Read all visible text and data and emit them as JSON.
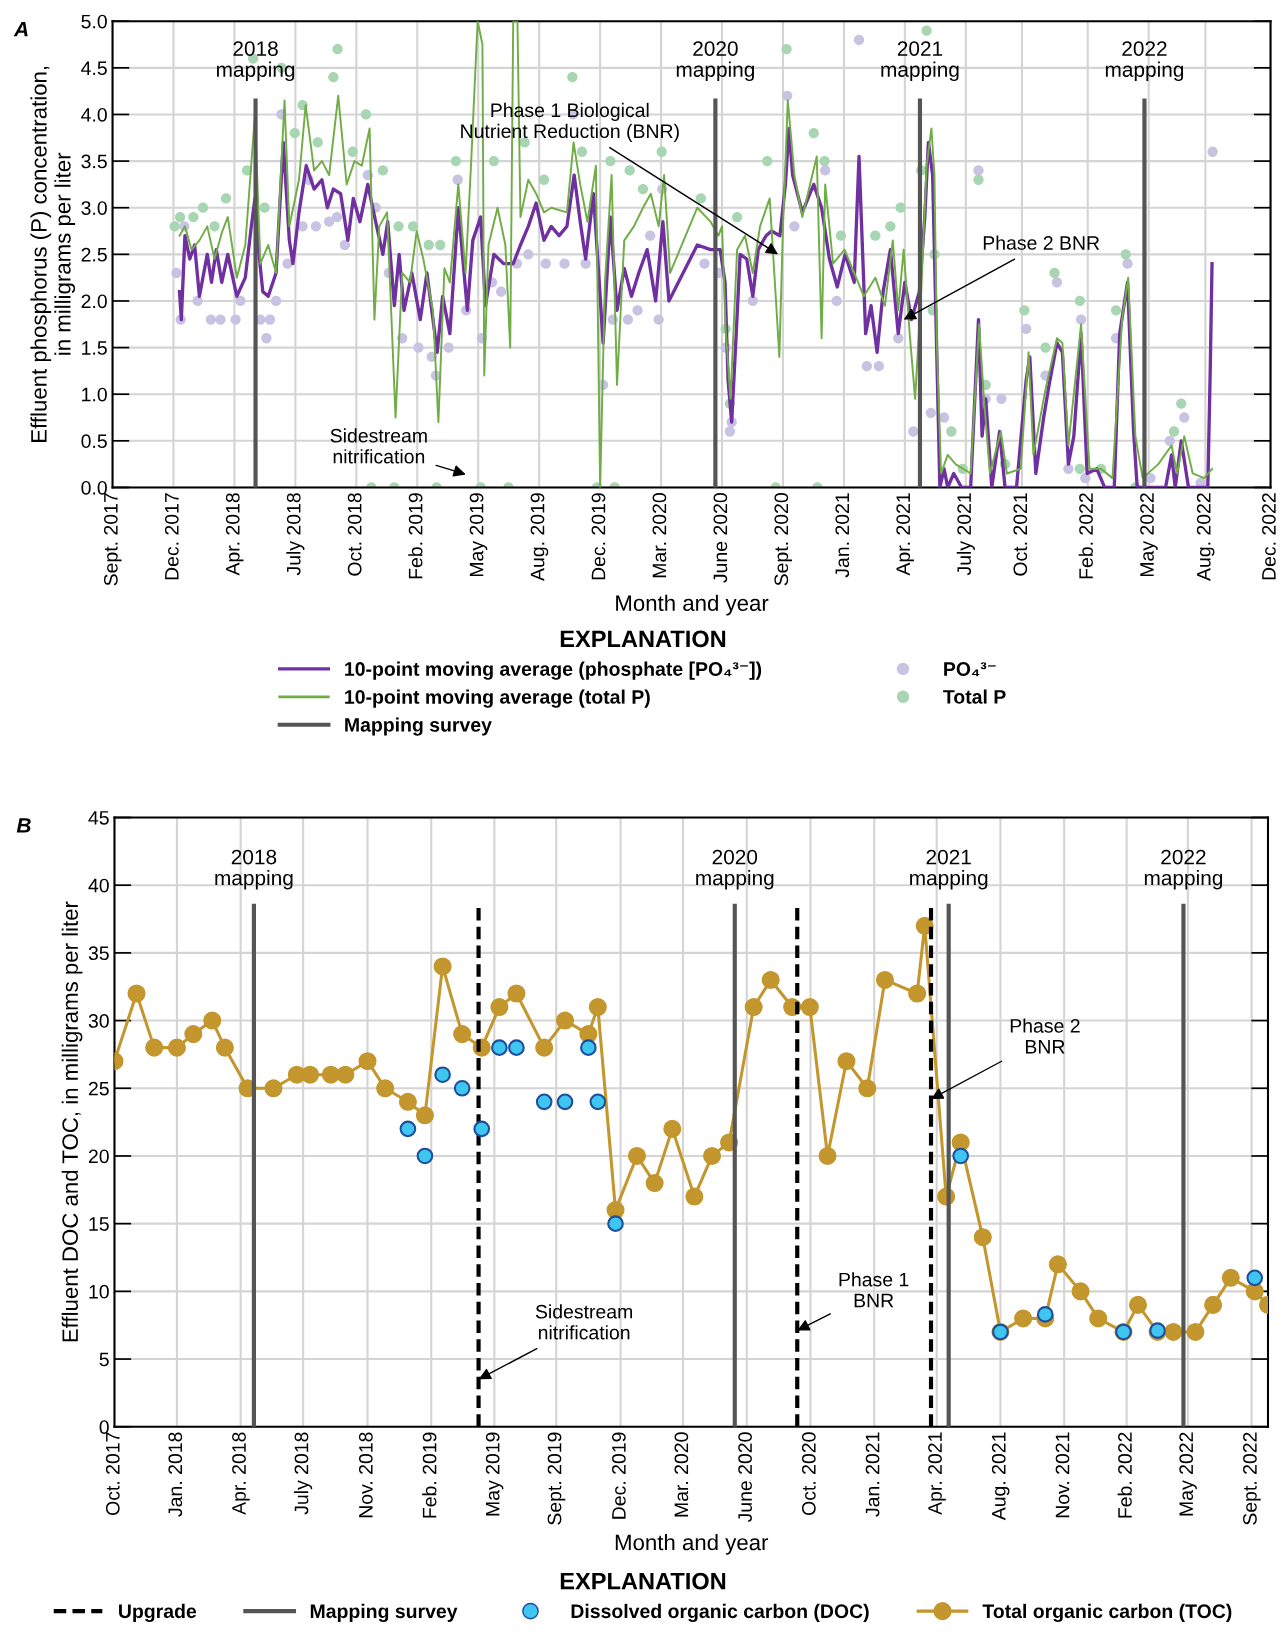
{
  "chart_data": [
    {
      "type": "line",
      "title": "A",
      "xlabel": "Month and year",
      "ylabel": "Effluent phosphorus (P) concentration,\nin milligrams per liter",
      "legend_title": "EXPLANATION",
      "xlim": [
        "2017-09-15",
        "2022-12-17"
      ],
      "xticks": [
        {
          "value": "2017-09-15",
          "label": "Sept. 2017"
        },
        {
          "value": "2017-12-25",
          "label": "Dec. 2017"
        },
        {
          "value": "2018-04-05",
          "label": "Apr. 2018"
        },
        {
          "value": "2018-07-15",
          "label": "July 2018"
        },
        {
          "value": "2018-10-24",
          "label": "Oct. 2018"
        },
        {
          "value": "2019-02-02",
          "label": "Feb. 2019"
        },
        {
          "value": "2019-05-14",
          "label": "May 2019"
        },
        {
          "value": "2019-08-23",
          "label": "Aug. 2019"
        },
        {
          "value": "2019-12-02",
          "label": "Dec. 2019"
        },
        {
          "value": "2020-03-12",
          "label": "Mar. 2020"
        },
        {
          "value": "2020-06-21",
          "label": "June 2020"
        },
        {
          "value": "2020-09-30",
          "label": "Sept. 2020"
        },
        {
          "value": "2021-01-09",
          "label": "Jan. 2021"
        },
        {
          "value": "2021-04-20",
          "label": "Apr. 2021"
        },
        {
          "value": "2021-07-30",
          "label": "July 2021"
        },
        {
          "value": "2021-10-31",
          "label": "Oct. 2021"
        },
        {
          "value": "2022-02-17",
          "label": "Feb. 2022"
        },
        {
          "value": "2022-05-29",
          "label": "May 2022"
        },
        {
          "value": "2022-08-31",
          "label": "Aug. 2022"
        },
        {
          "value": "2022-12-17",
          "label": "Dec. 2022"
        }
      ],
      "ylim": [
        0,
        5
      ],
      "yticks": [
        {
          "value": 0,
          "label": "0.0"
        },
        0.5,
        {
          "value": 1,
          "label": "1.0"
        },
        1.5,
        {
          "value": 2,
          "label": "2.0"
        },
        2.5,
        {
          "value": 3,
          "label": "3.0"
        },
        3.5,
        {
          "value": 4,
          "label": "4.0"
        },
        4.5,
        {
          "value": 5,
          "label": "5.0"
        }
      ],
      "grid": true,
      "legend": "bottom",
      "series": [
        {
          "name": "PO₄³⁻",
          "type": "scatter",
          "marker": "circle",
          "color": "#c9c3e3",
          "x": [
            "2017-12-30",
            "2018-01-06",
            "2018-01-12",
            "2018-02-03",
            "2018-02-25",
            "2018-03-13",
            "2018-04-07",
            "2018-04-15",
            "2018-05-18",
            "2018-05-28",
            "2018-06-03",
            "2018-06-13",
            "2018-06-22",
            "2018-07-02",
            "2018-07-27",
            "2018-08-06",
            "2018-08-18",
            "2018-09-09",
            "2018-09-22",
            "2018-10-05",
            "2018-11-12",
            "2018-11-25",
            "2018-12-17",
            "2019-01-08",
            "2019-02-04",
            "2019-02-26",
            "2019-03-05",
            "2019-03-26",
            "2019-04-10",
            "2019-04-24",
            "2019-05-20",
            "2019-06-06",
            "2019-06-21",
            "2019-07-17",
            "2019-08-05",
            "2019-09-03",
            "2019-10-04",
            "2019-10-18",
            "2019-11-08",
            "2019-12-07",
            "2019-12-23",
            "2020-01-17",
            "2020-02-02",
            "2020-02-23",
            "2020-03-08",
            "2020-03-14",
            "2020-05-23",
            "2020-06-15",
            "2020-06-27",
            "2020-07-04",
            "2020-07-07",
            "2020-08-11",
            "2020-10-07",
            "2020-10-19",
            "2020-12-09",
            "2020-12-28",
            "2021-02-03",
            "2021-02-16",
            "2021-03-08",
            "2021-04-09",
            "2021-05-04",
            "2021-06-02",
            "2021-06-24",
            "2021-08-20",
            "2021-09-01",
            "2021-09-27",
            "2021-11-07",
            "2021-12-09",
            "2021-12-28",
            "2022-01-16",
            "2022-02-06",
            "2022-02-13",
            "2022-04-05",
            "2022-04-24",
            "2022-06-01",
            "2022-07-03",
            "2022-07-27",
            "2022-08-23",
            "2022-09-12"
          ],
          "values": [
            2.3,
            1.8,
            2.8,
            2.0,
            1.8,
            1.8,
            1.8,
            2.0,
            1.8,
            1.6,
            1.8,
            2.0,
            4.0,
            2.4,
            2.8,
            3.3,
            2.8,
            2.85,
            2.9,
            2.6,
            3.35,
            3.0,
            2.3,
            1.6,
            1.5,
            1.4,
            1.2,
            1.5,
            3.3,
            1.9,
            1.6,
            2.2,
            2.1,
            2.4,
            2.5,
            2.4,
            2.4,
            4.0,
            2.4,
            1.1,
            1.8,
            1.8,
            1.9,
            2.7,
            1.8,
            3.2,
            2.4,
            2.3,
            1.5,
            0.6,
            0.7,
            2.0,
            4.2,
            2.8,
            3.4,
            2.0,
            4.8,
            1.3,
            1.3,
            1.6,
            0.6,
            0.8,
            0.75,
            3.4,
            0.95,
            0.95,
            1.7,
            1.2,
            2.2,
            0.2,
            1.8,
            0.1,
            1.6,
            2.4,
            0.1,
            0.5,
            0.75,
            0.05,
            3.6
          ]
        },
        {
          "name": "Total P",
          "type": "scatter",
          "marker": "circle",
          "color": "#a9d6b2",
          "x": [
            "2017-12-27",
            "2018-01-05",
            "2018-01-27",
            "2018-02-12",
            "2018-03-03",
            "2018-03-22",
            "2018-04-26",
            "2018-05-06",
            "2018-05-25",
            "2018-06-22",
            "2018-07-14",
            "2018-07-27",
            "2018-08-21",
            "2018-09-16",
            "2018-09-23",
            "2018-10-18",
            "2018-11-09",
            "2018-11-18",
            "2018-12-07",
            "2018-12-26",
            "2019-01-02",
            "2019-01-26",
            "2019-02-21",
            "2019-03-06",
            "2019-03-12",
            "2019-04-07",
            "2019-05-18",
            "2019-06-09",
            "2019-07-03",
            "2019-07-30",
            "2019-08-31",
            "2019-10-17",
            "2019-11-02",
            "2019-11-27",
            "2019-12-19",
            "2019-12-26",
            "2020-01-20",
            "2020-02-11",
            "2020-03-13",
            "2020-05-17",
            "2020-06-27",
            "2020-07-04",
            "2020-07-16",
            "2020-09-04",
            "2020-09-18",
            "2020-10-06",
            "2020-11-20",
            "2020-11-26",
            "2020-12-08",
            "2021-01-04",
            "2021-03-02",
            "2021-03-27",
            "2021-04-13",
            "2021-05-17",
            "2021-05-26",
            "2021-06-05",
            "2021-06-08",
            "2021-07-06",
            "2021-07-25",
            "2021-08-20",
            "2021-09-01",
            "2021-10-03",
            "2021-11-04",
            "2021-12-09",
            "2021-12-24",
            "2022-02-04",
            "2022-02-04",
            "2022-03-11",
            "2022-04-05",
            "2022-04-21",
            "2022-05-07",
            "2022-07-10",
            "2022-07-22"
          ],
          "values": [
            2.8,
            2.9,
            2.9,
            3.0,
            2.8,
            3.1,
            3.4,
            4.6,
            3.0,
            4.5,
            3.8,
            4.1,
            3.7,
            4.4,
            4.7,
            3.6,
            4.0,
            0.0,
            3.4,
            0.0,
            2.8,
            2.8,
            2.6,
            0.0,
            2.6,
            3.5,
            0.0,
            3.5,
            0.0,
            3.7,
            3.3,
            4.4,
            3.6,
            0.0,
            3.5,
            0.0,
            3.4,
            3.2,
            3.6,
            3.1,
            1.7,
            0.9,
            2.9,
            3.5,
            0.0,
            4.7,
            3.8,
            0.0,
            3.5,
            2.7,
            2.7,
            2.8,
            3.0,
            3.4,
            4.9,
            1.9,
            2.5,
            0.6,
            0.2,
            3.3,
            1.1,
            0.25,
            1.9,
            1.5,
            2.3,
            2.0,
            0.2,
            0.2,
            1.9,
            2.5,
            0.0,
            0.6,
            0.9
          ]
        },
        {
          "name": "10-point moving average (phosphate [PO₄³⁻])",
          "color": "#7030a0",
          "x": [
            "2018-01-04",
            "2018-01-07",
            "2018-01-13",
            "2018-01-21",
            "2018-01-29",
            "2018-02-06",
            "2018-02-19",
            "2018-02-26",
            "2018-03-06",
            "2018-03-15",
            "2018-03-25",
            "2018-04-09",
            "2018-04-23",
            "2018-05-03",
            "2018-05-09",
            "2018-05-15",
            "2018-05-22",
            "2018-05-31",
            "2018-06-13",
            "2018-06-25",
            "2018-07-05",
            "2018-07-11",
            "2018-07-21",
            "2018-08-02",
            "2018-08-15",
            "2018-08-28",
            "2018-09-06",
            "2018-09-16",
            "2018-09-28",
            "2018-10-10",
            "2018-10-19",
            "2018-10-30",
            "2018-11-12",
            "2018-11-25",
            "2018-12-07",
            "2018-12-15",
            "2018-12-26",
            "2019-01-03",
            "2019-01-11",
            "2019-01-24",
            "2019-02-07",
            "2019-02-18",
            "2019-02-28",
            "2019-03-07",
            "2019-03-16",
            "2019-03-28",
            "2019-04-11",
            "2019-04-26",
            "2019-05-05",
            "2019-05-18",
            "2019-05-26",
            "2019-06-09",
            "2019-06-25",
            "2019-07-11",
            "2019-07-23",
            "2019-08-05",
            "2019-08-18",
            "2019-08-31",
            "2019-09-12",
            "2019-09-25",
            "2019-10-08",
            "2019-10-20",
            "2019-10-30",
            "2019-11-08",
            "2019-11-21",
            "2019-12-07",
            "2019-12-19",
            "2019-12-30",
            "2020-01-11",
            "2020-01-23",
            "2020-02-04",
            "2020-02-18",
            "2020-03-03",
            "2020-03-15",
            "2020-03-25",
            "2020-05-11",
            "2020-06-02",
            "2020-06-18",
            "2020-06-26",
            "2020-07-01",
            "2020-07-07",
            "2020-07-13",
            "2020-07-21",
            "2020-08-01",
            "2020-08-11",
            "2020-08-20",
            "2020-09-02",
            "2020-09-11",
            "2020-09-25",
            "2020-10-04",
            "2020-10-10",
            "2020-10-16",
            "2020-11-01",
            "2020-11-20",
            "2020-12-03",
            "2020-12-16",
            "2020-12-29",
            "2021-01-11",
            "2021-01-26",
            "2021-02-03",
            "2021-02-14",
            "2021-02-23",
            "2021-03-05",
            "2021-03-15",
            "2021-03-27",
            "2021-04-09",
            "2021-04-20",
            "2021-05-01",
            "2021-05-14",
            "2021-05-23",
            "2021-05-29",
            "2021-06-05",
            "2021-06-12",
            "2021-06-17",
            "2021-06-24",
            "2021-06-30",
            "2021-07-10",
            "2021-07-23",
            "2021-08-07",
            "2021-08-20",
            "2021-08-26",
            "2021-09-01",
            "2021-09-11",
            "2021-09-24",
            "2021-10-03",
            "2021-10-22",
            "2021-11-07",
            "2021-11-13",
            "2021-11-23",
            "2021-12-06",
            "2021-12-15",
            "2021-12-28",
            "2022-01-06",
            "2022-01-16",
            "2022-01-25",
            "2022-02-06",
            "2022-02-16",
            "2022-03-04",
            "2022-03-17",
            "2022-04-02",
            "2022-04-11",
            "2022-04-24",
            "2022-05-04",
            "2022-05-10",
            "2022-06-01",
            "2022-06-26",
            "2022-07-06",
            "2022-07-12",
            "2022-07-22",
            "2022-08-03",
            "2022-08-23",
            "2022-09-04",
            "2022-09-08",
            "2022-09-11"
          ],
          "values": [
            2.1,
            1.8,
            2.7,
            2.45,
            2.6,
            2.05,
            2.5,
            2.2,
            2.55,
            2.2,
            2.5,
            2.05,
            2.25,
            2.8,
            3.1,
            2.55,
            2.1,
            2.05,
            2.3,
            3.7,
            2.65,
            2.4,
            2.95,
            3.45,
            3.2,
            3.3,
            3.0,
            3.2,
            3.15,
            2.65,
            3.1,
            2.85,
            3.25,
            2.85,
            2.5,
            2.85,
            1.95,
            2.5,
            1.9,
            2.3,
            1.8,
            2.3,
            1.8,
            1.45,
            2.05,
            1.65,
            3.0,
            1.9,
            2.65,
            2.9,
            1.95,
            2.5,
            2.4,
            2.4,
            2.6,
            2.8,
            3.05,
            2.65,
            2.8,
            2.7,
            2.8,
            3.35,
            2.85,
            2.45,
            3.15,
            1.55,
            2.9,
            1.9,
            2.35,
            2.05,
            2.3,
            2.55,
            2.0,
            2.85,
            2.0,
            2.6,
            2.55,
            2.55,
            2.2,
            1.15,
            0.7,
            1.45,
            2.5,
            2.45,
            2.05,
            2.55,
            2.7,
            2.75,
            2.7,
            3.25,
            3.85,
            3.35,
            2.95,
            3.25,
            3.0,
            2.45,
            2.15,
            2.5,
            2.2,
            3.55,
            1.65,
            1.95,
            1.45,
            2.1,
            2.55,
            1.65,
            2.2,
            1.8,
            2.1,
            2.9,
            3.7,
            3.35,
            1.4,
            0.0,
            0.2,
            0.0,
            0.15,
            0.0,
            0.0,
            1.8,
            0.55,
            0.95,
            0.0,
            0.6,
            0.0,
            0.0,
            1.15,
            1.4,
            0.15,
            0.75,
            1.1,
            1.55,
            1.45,
            0.25,
            0.55,
            1.65,
            0.15,
            0.2,
            0.0,
            0.0,
            1.65,
            2.2,
            0.6,
            0.0,
            0.0,
            0.0,
            0.35,
            0.0,
            0.5,
            0.0,
            0.0,
            0.0,
            1.25,
            2.4
          ]
        },
        {
          "name": "10-point moving average (total P)",
          "color": "#70ad47",
          "x": [
            "2018-01-04",
            "2018-01-13",
            "2018-01-24",
            "2018-02-06",
            "2018-02-19",
            "2018-03-03",
            "2018-03-16",
            "2018-03-25",
            "2018-04-09",
            "2018-04-23",
            "2018-05-09",
            "2018-05-18",
            "2018-05-31",
            "2018-06-13",
            "2018-06-27",
            "2018-07-05",
            "2018-07-21",
            "2018-08-01",
            "2018-08-15",
            "2018-08-28",
            "2018-09-09",
            "2018-09-24",
            "2018-10-08",
            "2018-10-21",
            "2018-11-02",
            "2018-11-15",
            "2018-11-23",
            "2018-12-01",
            "2018-12-14",
            "2018-12-28",
            "2019-01-08",
            "2019-01-21",
            "2019-02-01",
            "2019-02-12",
            "2019-02-28",
            "2019-03-09",
            "2019-03-19",
            "2019-03-28",
            "2019-04-11",
            "2019-04-23",
            "2019-05-02",
            "2019-05-13",
            "2019-05-21",
            "2019-05-24",
            "2019-05-31",
            "2019-06-15",
            "2019-06-28",
            "2019-07-06",
            "2019-07-11",
            "2019-07-18",
            "2019-07-23",
            "2019-08-05",
            "2019-08-18",
            "2019-08-31",
            "2019-09-12",
            "2019-10-08",
            "2019-10-19",
            "2019-10-30",
            "2019-11-11",
            "2019-11-25",
            "2019-12-02",
            "2019-12-10",
            "2019-12-21",
            "2019-12-30",
            "2020-01-11",
            "2020-01-27",
            "2020-02-11",
            "2020-02-24",
            "2020-03-08",
            "2020-03-17",
            "2020-03-27",
            "2020-05-11",
            "2020-06-02",
            "2020-06-15",
            "2020-06-21",
            "2020-06-27",
            "2020-07-05",
            "2020-07-16",
            "2020-07-29",
            "2020-08-11",
            "2020-08-23",
            "2020-09-08",
            "2020-09-18",
            "2020-09-24",
            "2020-09-30",
            "2020-10-08",
            "2020-10-19",
            "2020-11-01",
            "2020-11-25",
            "2020-12-03",
            "2020-12-09",
            "2020-12-22",
            "2021-01-10",
            "2021-01-26",
            "2021-02-11",
            "2021-03-02",
            "2021-03-18",
            "2021-03-31",
            "2021-04-09",
            "2021-04-18",
            "2021-04-28",
            "2021-05-07",
            "2021-05-17",
            "2021-05-26",
            "2021-06-03",
            "2021-06-08",
            "2021-06-12",
            "2021-06-19",
            "2021-06-30",
            "2021-07-13",
            "2021-08-07",
            "2021-08-21",
            "2021-08-29",
            "2021-09-08",
            "2021-09-26",
            "2021-10-06",
            "2021-10-29",
            "2021-11-11",
            "2021-11-19",
            "2021-12-09",
            "2021-12-28",
            "2022-01-06",
            "2022-01-16",
            "2022-02-06",
            "2022-02-20",
            "2022-03-11",
            "2022-03-30",
            "2022-04-15",
            "2022-04-25",
            "2022-05-07",
            "2022-05-19",
            "2022-06-14",
            "2022-07-06",
            "2022-07-15",
            "2022-07-27",
            "2022-08-10",
            "2022-08-29",
            "2022-09-11"
          ],
          "values": [
            2.7,
            2.8,
            2.55,
            2.65,
            2.8,
            2.45,
            2.75,
            2.9,
            2.25,
            2.6,
            4.0,
            2.4,
            2.6,
            2.3,
            4.15,
            2.8,
            3.3,
            4.1,
            3.4,
            3.5,
            3.35,
            4.2,
            3.25,
            3.5,
            3.45,
            3.85,
            1.8,
            2.8,
            2.95,
            0.75,
            2.3,
            2.2,
            2.75,
            2.45,
            1.9,
            0.7,
            2.35,
            2.2,
            3.25,
            2.3,
            3.45,
            5.0,
            4.75,
            1.2,
            2.6,
            3.0,
            2.6,
            1.5,
            5.0,
            5.0,
            2.9,
            3.3,
            3.15,
            2.95,
            3.0,
            2.95,
            3.7,
            3.25,
            2.85,
            3.45,
            0.0,
            2.2,
            3.35,
            1.1,
            2.65,
            2.8,
            3.0,
            3.15,
            2.8,
            3.35,
            2.3,
            3.0,
            2.85,
            2.7,
            2.8,
            1.7,
            0.95,
            2.55,
            2.7,
            2.3,
            2.8,
            3.1,
            2.05,
            1.4,
            2.8,
            4.15,
            3.35,
            2.9,
            3.55,
            1.6,
            3.25,
            2.4,
            2.55,
            2.3,
            2.05,
            2.25,
            1.95,
            2.65,
            1.9,
            2.55,
            1.65,
            0.95,
            2.1,
            3.45,
            3.85,
            3.35,
            1.55,
            0.15,
            0.35,
            0.25,
            0.15,
            1.75,
            0.95,
            0.15,
            0.6,
            0.15,
            0.2,
            1.45,
            0.35,
            1.05,
            1.6,
            1.55,
            0.45,
            1.75,
            0.2,
            0.2,
            0.1,
            1.8,
            2.25,
            0.55,
            0.1,
            0.25,
            0.45,
            0.15,
            0.55,
            0.15,
            0.1,
            0.2
          ]
        }
      ],
      "ref_lines": [
        {
          "axis": "x",
          "value": "2018-05-10",
          "label": "2018\nmapping",
          "color": "#555555"
        },
        {
          "axis": "x",
          "value": "2020-06-10",
          "label": "2020\nmapping",
          "color": "#555555"
        },
        {
          "axis": "x",
          "value": "2021-05-15",
          "label": "2021\nmapping",
          "color": "#555555"
        },
        {
          "axis": "x",
          "value": "2022-05-22",
          "label": "2022\nmapping",
          "color": "#555555"
        }
      ],
      "annotations": [
        {
          "text": "Phase 1 Biological\nNutrient Reduction (BNR)",
          "x": "2020-09-22",
          "y": 2.5
        },
        {
          "text": "Phase 2 BNR",
          "x": "2021-04-18",
          "y": 1.8
        },
        "Sidestream\nnitrification",
        "Mapping survey"
      ]
    },
    {
      "type": "line",
      "title": "B",
      "xlabel": "Month and year",
      "ylabel": "Effluent DOC and TOC, in milligrams per liter",
      "legend_title": "EXPLANATION",
      "xlim": [
        "2017-10-01",
        "2022-10-03"
      ],
      "xticks": [
        {
          "value": "2017-10-01",
          "label": "Oct. 2017"
        },
        {
          "value": "2018-01-08",
          "label": "Jan. 2018"
        },
        {
          "value": "2018-04-19",
          "label": "Apr. 2018"
        },
        {
          "value": "2018-07-27",
          "label": "July 2018"
        },
        {
          "value": "2018-11-06",
          "label": "Nov. 2018"
        },
        {
          "value": "2019-02-15",
          "label": "Feb. 2019"
        },
        {
          "value": "2019-05-26",
          "label": "May 2019"
        },
        {
          "value": "2019-09-01",
          "label": "Sept. 2019"
        },
        {
          "value": "2019-12-12",
          "label": "Dec. 2019"
        },
        {
          "value": "2020-03-20",
          "label": "Mar. 2020"
        },
        {
          "value": "2020-06-29",
          "label": "June 2020"
        },
        {
          "value": "2020-10-08",
          "label": "Oct. 2020"
        },
        {
          "value": "2021-01-17",
          "label": "Jan. 2021"
        },
        {
          "value": "2021-04-26",
          "label": "Apr. 2021"
        },
        {
          "value": "2021-08-05",
          "label": "Aug. 2021"
        },
        {
          "value": "2021-11-14",
          "label": "Nov. 2021"
        },
        {
          "value": "2022-02-21",
          "label": "Feb. 2022"
        },
        {
          "value": "2022-05-29",
          "label": "May 2022"
        },
        {
          "value": "2022-09-07",
          "label": "Sept. 2022"
        }
      ],
      "ylim": [
        0,
        45
      ],
      "yticks": [
        0,
        5,
        10,
        15,
        20,
        25,
        30,
        35,
        40,
        45
      ],
      "grid": true,
      "legend": "bottom",
      "series": [
        {
          "name": "Total organic carbon (TOC)",
          "marker": "circle",
          "color": "#c3962e",
          "x": [
            "2017-10-01",
            "2017-11-05",
            "2017-12-03",
            "2018-01-08",
            "2018-02-03",
            "2018-03-05",
            "2018-03-25",
            "2018-04-30",
            "2018-06-10",
            "2018-07-17",
            "2018-08-07",
            "2018-09-09",
            "2018-10-02",
            "2018-11-06",
            "2018-12-04",
            "2019-01-09",
            "2019-02-05",
            "2019-03-05",
            "2019-04-05",
            "2019-05-06",
            "2019-06-03",
            "2019-06-30",
            "2019-08-13",
            "2019-09-15",
            "2019-10-22",
            "2019-11-06",
            "2019-12-04",
            "2020-01-07",
            "2020-02-04",
            "2020-03-03",
            "2020-04-07",
            "2020-05-05",
            "2020-06-01",
            "2020-07-10",
            "2020-08-06",
            "2020-09-09",
            "2020-10-07",
            "2020-11-04",
            "2020-12-04",
            "2021-01-06",
            "2021-02-03",
            "2021-03-26",
            "2021-04-07",
            "2021-05-11",
            "2021-06-03",
            "2021-07-08",
            "2021-08-05",
            "2021-09-10",
            "2021-10-15",
            "2021-11-04",
            "2021-12-10",
            "2022-01-07",
            "2022-02-16",
            "2022-03-11",
            "2022-04-11",
            "2022-05-06",
            "2022-06-10",
            "2022-07-08",
            "2022-08-05",
            "2022-09-12",
            "2022-10-03"
          ],
          "values": [
            27,
            32,
            28,
            28,
            29,
            30,
            28,
            25,
            25,
            26,
            26,
            26,
            26,
            27,
            25,
            24,
            23,
            34,
            29,
            28,
            31,
            32,
            28,
            30,
            29,
            31,
            16,
            20,
            18,
            22,
            17,
            20,
            21,
            31,
            33,
            31,
            31,
            20,
            27,
            25,
            33,
            32,
            37,
            17,
            21,
            14,
            7,
            8,
            8,
            12,
            10,
            8,
            7,
            9,
            7,
            7,
            7,
            9,
            11,
            10,
            9
          ]
        },
        {
          "name": "Dissolved organic carbon (DOC)",
          "type": "scatter",
          "marker": "circle",
          "color": "#3ec6f0",
          "x": [
            "2019-01-09",
            "2019-02-05",
            "2019-03-05",
            "2019-04-05",
            "2019-05-06",
            "2019-06-03",
            "2019-06-30",
            "2019-08-13",
            "2019-09-15",
            "2019-10-22",
            "2019-11-06",
            "2019-12-04",
            "2021-06-03",
            "2021-08-05",
            "2021-10-15",
            "2022-02-16",
            "2022-04-11",
            "2022-09-12"
          ],
          "values": [
            22,
            20,
            26,
            25,
            22,
            28,
            28,
            24,
            24,
            28,
            24,
            15,
            20,
            7,
            8.3,
            7,
            7.1,
            11
          ]
        }
      ],
      "ref_lines": [
        {
          "axis": "x",
          "value": "2019-05-01",
          "color": "#000000",
          "line_style": "dashed"
        },
        {
          "axis": "x",
          "value": "2020-09-17",
          "color": "#000000",
          "line_style": "dashed"
        },
        {
          "axis": "x",
          "value": "2021-04-17",
          "color": "#000000",
          "line_style": "dashed"
        },
        {
          "axis": "x",
          "value": "2018-05-10",
          "label": "2018\nmapping",
          "color": "#555555"
        },
        {
          "axis": "x",
          "value": "2020-06-10",
          "label": "2020\nmapping",
          "color": "#555555"
        },
        {
          "axis": "x",
          "value": "2021-05-15",
          "label": "2021\nmapping",
          "color": "#555555"
        },
        {
          "axis": "x",
          "value": "2022-05-22",
          "label": "2022\nmapping",
          "color": "#555555"
        }
      ],
      "annotations": [
        {
          "text": "Sidestream\nnitrification",
          "x": "2019-05-01",
          "y": 3.5
        },
        {
          "text": "Phase 1\nBNR",
          "x": "2020-09-17",
          "y": 7.1
        },
        {
          "text": "Phase 2\nBNR",
          "x": "2021-04-17",
          "y": 24.2
        },
        "Upgrade",
        "Mapping survey"
      ]
    }
  ]
}
